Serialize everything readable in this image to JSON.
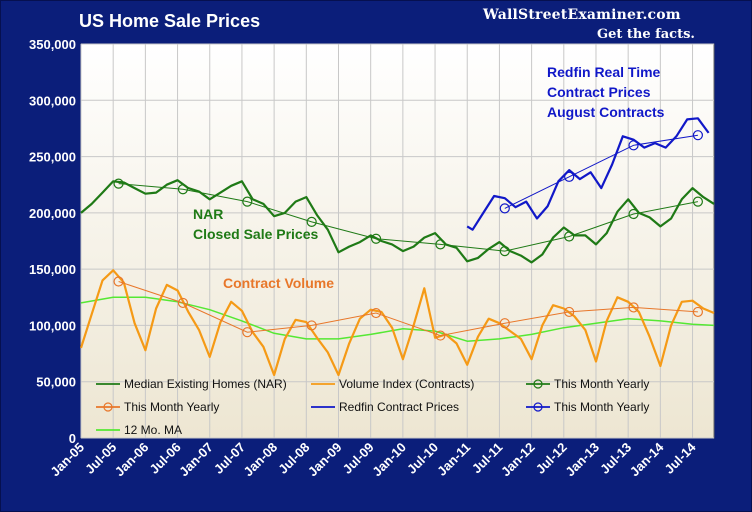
{
  "header": {
    "title": "US Home Sale Prices",
    "brand": "WallStreetExaminer.com",
    "tagline": "Get the facts."
  },
  "chart_data": {
    "type": "line",
    "title": "US Home Sale Prices",
    "ylim": [
      0,
      350000
    ],
    "yticks": [
      "0",
      "50,000",
      "100,000",
      "150,000",
      "200,000",
      "250,000",
      "300,000",
      "350,000"
    ],
    "x_start": "2005-01",
    "x_end": "2014-11",
    "xticks": [
      "Jan-05",
      "Jul-05",
      "Jan-06",
      "Jul-06",
      "Jan-07",
      "Jul-07",
      "Jan-08",
      "Jul-08",
      "Jan-09",
      "Jul-09",
      "Jan-10",
      "Jul-10",
      "Jan-11",
      "Jul-11",
      "Jan-12",
      "Jul-12",
      "Jan-13",
      "Jul-13",
      "Jan-14",
      "Jul-14"
    ],
    "grid": true,
    "legend_position": "bottom",
    "colors": {
      "nar": "#1f7a16",
      "volume": "#f59a16",
      "volume_yearly": "#e8772a",
      "redfin": "#1118c8",
      "ma": "#55e833",
      "frame": "#0b1e7a"
    },
    "annotations": [
      {
        "text": "NAR",
        "color": "#1f7a16"
      },
      {
        "text": "Closed Sale Prices",
        "color": "#1f7a16"
      },
      {
        "text": "Contract Volume",
        "color": "#e8772a"
      },
      {
        "text": "Redfin Real Time",
        "color": "#1118c8"
      },
      {
        "text": "Contract Prices",
        "color": "#1118c8"
      },
      {
        "text": "August Contracts",
        "color": "#1118c8"
      }
    ],
    "legend": [
      {
        "label": "Median Existing Homes (NAR)",
        "color": "#1f7a16",
        "marker": false
      },
      {
        "label": "Volume Index (Contracts)",
        "color": "#f59a16",
        "marker": false
      },
      {
        "label": "This Month Yearly",
        "color": "#1f7a16",
        "marker": true
      },
      {
        "label": "This Month Yearly",
        "color": "#e8772a",
        "marker": true
      },
      {
        "label": "Redfin Contract Prices",
        "color": "#1118c8",
        "marker": false
      },
      {
        "label": "This Month Yearly",
        "color": "#1118c8",
        "marker": true
      },
      {
        "label": "12 Mo. MA",
        "color": "#55e833",
        "marker": false
      }
    ],
    "series": [
      {
        "name": "Median Existing Homes (NAR)",
        "key": "nar",
        "points": [
          [
            "2005-01",
            200000
          ],
          [
            "2005-03",
            208000
          ],
          [
            "2005-05",
            218000
          ],
          [
            "2005-07",
            228000
          ],
          [
            "2005-09",
            227000
          ],
          [
            "2005-11",
            222000
          ],
          [
            "2006-01",
            217000
          ],
          [
            "2006-03",
            218000
          ],
          [
            "2006-05",
            225000
          ],
          [
            "2006-07",
            229000
          ],
          [
            "2006-09",
            222000
          ],
          [
            "2006-11",
            219000
          ],
          [
            "2007-01",
            212000
          ],
          [
            "2007-03",
            218000
          ],
          [
            "2007-05",
            224000
          ],
          [
            "2007-07",
            228000
          ],
          [
            "2007-09",
            212000
          ],
          [
            "2007-11",
            208000
          ],
          [
            "2008-01",
            197000
          ],
          [
            "2008-03",
            200000
          ],
          [
            "2008-05",
            210000
          ],
          [
            "2008-07",
            214000
          ],
          [
            "2008-09",
            198000
          ],
          [
            "2008-11",
            185000
          ],
          [
            "2009-01",
            165000
          ],
          [
            "2009-03",
            170000
          ],
          [
            "2009-05",
            174000
          ],
          [
            "2009-07",
            180000
          ],
          [
            "2009-09",
            175000
          ],
          [
            "2009-11",
            172000
          ],
          [
            "2010-01",
            166000
          ],
          [
            "2010-03",
            170000
          ],
          [
            "2010-05",
            178000
          ],
          [
            "2010-07",
            182000
          ],
          [
            "2010-09",
            172000
          ],
          [
            "2010-11",
            169000
          ],
          [
            "2011-01",
            157000
          ],
          [
            "2011-03",
            160000
          ],
          [
            "2011-05",
            168000
          ],
          [
            "2011-07",
            174000
          ],
          [
            "2011-09",
            166000
          ],
          [
            "2011-11",
            162000
          ],
          [
            "2012-01",
            156000
          ],
          [
            "2012-03",
            163000
          ],
          [
            "2012-05",
            178000
          ],
          [
            "2012-07",
            187000
          ],
          [
            "2012-09",
            180000
          ],
          [
            "2012-11",
            180000
          ],
          [
            "2013-01",
            172000
          ],
          [
            "2013-03",
            182000
          ],
          [
            "2013-05",
            201000
          ],
          [
            "2013-07",
            212000
          ],
          [
            "2013-09",
            200000
          ],
          [
            "2013-11",
            196000
          ],
          [
            "2014-01",
            188000
          ],
          [
            "2014-03",
            195000
          ],
          [
            "2014-05",
            212000
          ],
          [
            "2014-07",
            222000
          ],
          [
            "2014-09",
            214000
          ],
          [
            "2014-11",
            208000
          ]
        ]
      },
      {
        "name": "Volume Index (Contracts)",
        "key": "volume",
        "points": [
          [
            "2005-01",
            80000
          ],
          [
            "2005-03",
            110000
          ],
          [
            "2005-05",
            140000
          ],
          [
            "2005-07",
            149000
          ],
          [
            "2005-09",
            138000
          ],
          [
            "2005-11",
            102000
          ],
          [
            "2006-01",
            78000
          ],
          [
            "2006-03",
            115000
          ],
          [
            "2006-05",
            136000
          ],
          [
            "2006-07",
            131000
          ],
          [
            "2006-09",
            112000
          ],
          [
            "2006-11",
            96000
          ],
          [
            "2007-01",
            72000
          ],
          [
            "2007-03",
            103000
          ],
          [
            "2007-05",
            121000
          ],
          [
            "2007-07",
            113000
          ],
          [
            "2007-09",
            94000
          ],
          [
            "2007-11",
            81000
          ],
          [
            "2008-01",
            56000
          ],
          [
            "2008-03",
            88000
          ],
          [
            "2008-05",
            105000
          ],
          [
            "2008-07",
            103000
          ],
          [
            "2008-09",
            89000
          ],
          [
            "2008-11",
            76000
          ],
          [
            "2009-01",
            56000
          ],
          [
            "2009-03",
            84000
          ],
          [
            "2009-05",
            106000
          ],
          [
            "2009-07",
            114000
          ],
          [
            "2009-09",
            112000
          ],
          [
            "2009-11",
            98000
          ],
          [
            "2010-01",
            70000
          ],
          [
            "2010-03",
            100000
          ],
          [
            "2010-05",
            133000
          ],
          [
            "2010-07",
            89000
          ],
          [
            "2010-09",
            92000
          ],
          [
            "2010-11",
            84000
          ],
          [
            "2011-01",
            65000
          ],
          [
            "2011-03",
            90000
          ],
          [
            "2011-05",
            106000
          ],
          [
            "2011-07",
            102000
          ],
          [
            "2011-09",
            95000
          ],
          [
            "2011-11",
            88000
          ],
          [
            "2012-01",
            70000
          ],
          [
            "2012-03",
            100000
          ],
          [
            "2012-05",
            118000
          ],
          [
            "2012-07",
            115000
          ],
          [
            "2012-09",
            108000
          ],
          [
            "2012-11",
            96000
          ],
          [
            "2013-01",
            68000
          ],
          [
            "2013-03",
            104000
          ],
          [
            "2013-05",
            125000
          ],
          [
            "2013-07",
            121000
          ],
          [
            "2013-09",
            112000
          ],
          [
            "2013-11",
            90000
          ],
          [
            "2014-01",
            64000
          ],
          [
            "2014-03",
            100000
          ],
          [
            "2014-05",
            121000
          ],
          [
            "2014-07",
            122000
          ],
          [
            "2014-09",
            115000
          ],
          [
            "2014-11",
            111000
          ]
        ]
      },
      {
        "name": "12 Mo. MA",
        "key": "ma",
        "points": [
          [
            "2005-01",
            120000
          ],
          [
            "2005-07",
            125000
          ],
          [
            "2006-01",
            125000
          ],
          [
            "2006-07",
            121000
          ],
          [
            "2007-01",
            114000
          ],
          [
            "2007-07",
            104000
          ],
          [
            "2008-01",
            93000
          ],
          [
            "2008-07",
            88000
          ],
          [
            "2009-01",
            88000
          ],
          [
            "2009-07",
            92000
          ],
          [
            "2010-01",
            97000
          ],
          [
            "2010-07",
            95000
          ],
          [
            "2011-01",
            86000
          ],
          [
            "2011-07",
            88000
          ],
          [
            "2012-01",
            92000
          ],
          [
            "2012-07",
            98000
          ],
          [
            "2013-01",
            102000
          ],
          [
            "2013-07",
            106000
          ],
          [
            "2014-01",
            104000
          ],
          [
            "2014-07",
            101000
          ],
          [
            "2014-11",
            100000
          ]
        ]
      },
      {
        "name": "Redfin Contract Prices",
        "key": "redfin",
        "points": [
          [
            "2011-01",
            188000
          ],
          [
            "2011-02",
            185000
          ],
          [
            "2011-04",
            200000
          ],
          [
            "2011-06",
            215000
          ],
          [
            "2011-08",
            213000
          ],
          [
            "2011-10",
            205000
          ],
          [
            "2011-12",
            210000
          ],
          [
            "2012-02",
            195000
          ],
          [
            "2012-04",
            206000
          ],
          [
            "2012-06",
            228000
          ],
          [
            "2012-08",
            238000
          ],
          [
            "2012-10",
            230000
          ],
          [
            "2012-12",
            236000
          ],
          [
            "2013-02",
            222000
          ],
          [
            "2013-04",
            243000
          ],
          [
            "2013-06",
            268000
          ],
          [
            "2013-08",
            265000
          ],
          [
            "2013-10",
            258000
          ],
          [
            "2013-12",
            262000
          ],
          [
            "2014-02",
            258000
          ],
          [
            "2014-04",
            268000
          ],
          [
            "2014-06",
            283000
          ],
          [
            "2014-08",
            284000
          ],
          [
            "2014-10",
            271000
          ]
        ]
      }
    ],
    "yearly": [
      {
        "key": "nar",
        "points": [
          [
            "2005-08",
            226000
          ],
          [
            "2006-08",
            221000
          ],
          [
            "2007-08",
            210000
          ],
          [
            "2008-08",
            192000
          ],
          [
            "2009-08",
            177000
          ],
          [
            "2010-08",
            172000
          ],
          [
            "2011-08",
            166000
          ],
          [
            "2012-08",
            179000
          ],
          [
            "2013-08",
            199000
          ],
          [
            "2014-08",
            210000
          ]
        ]
      },
      {
        "key": "volume_yearly",
        "points": [
          [
            "2005-08",
            139000
          ],
          [
            "2006-08",
            120000
          ],
          [
            "2007-08",
            94000
          ],
          [
            "2008-08",
            100000
          ],
          [
            "2009-08",
            111000
          ],
          [
            "2010-08",
            91000
          ],
          [
            "2011-08",
            102000
          ],
          [
            "2012-08",
            112000
          ],
          [
            "2013-08",
            116000
          ],
          [
            "2014-08",
            112000
          ]
        ]
      },
      {
        "key": "redfin",
        "points": [
          [
            "2011-08",
            204000
          ],
          [
            "2012-08",
            232000
          ],
          [
            "2013-08",
            260000
          ],
          [
            "2014-08",
            269000
          ]
        ]
      }
    ]
  }
}
